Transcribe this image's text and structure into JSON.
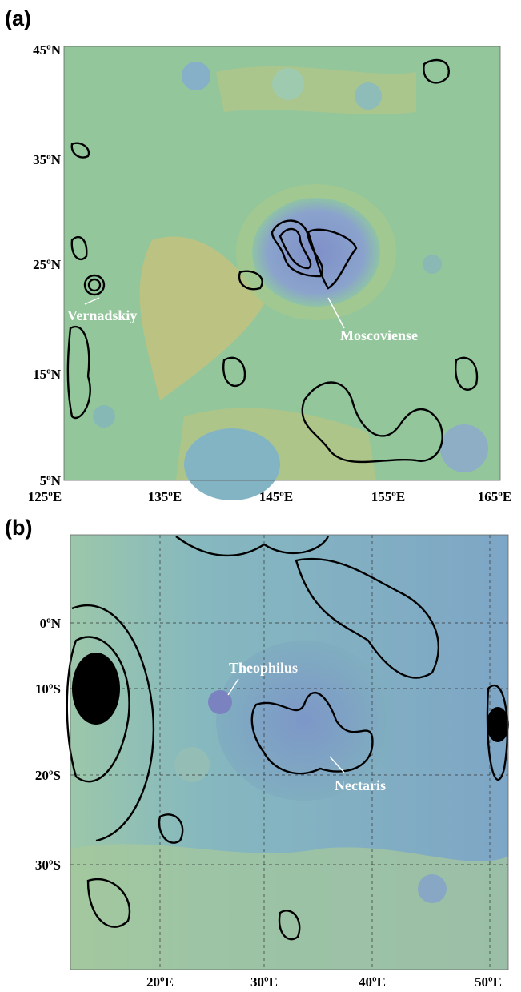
{
  "panels": [
    {
      "label": "(a)",
      "y_labels": [
        "45ºN",
        "35ºN",
        "25ºN",
        "15ºN",
        "5ºN"
      ],
      "x_labels": [
        "125ºE",
        "135ºE",
        "145ºE",
        "155ºE",
        "165ºE"
      ],
      "annotations": [
        "Vernadskiy",
        "Moscoviense"
      ]
    },
    {
      "label": "(b)",
      "y_labels": [
        "0ºN",
        "10ºS",
        "20ºS",
        "30ºS"
      ],
      "x_labels": [
        "20ºE",
        "30ºE",
        "40ºE",
        "50ºE"
      ],
      "annotations": [
        "Theophilus",
        "Nectaris"
      ]
    }
  ]
}
